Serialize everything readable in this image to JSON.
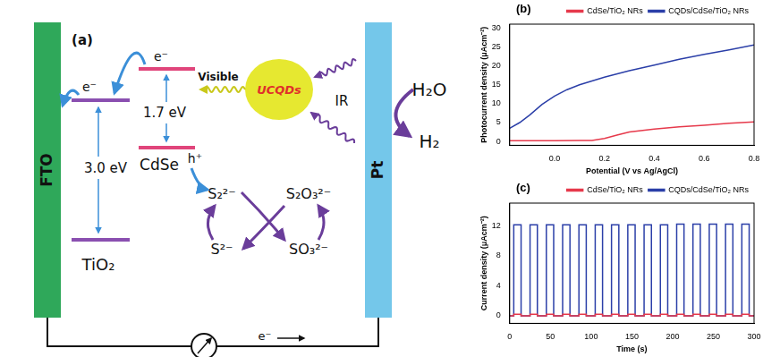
{
  "diagram": {
    "panel_label": "(a)",
    "left_electrode": "FTO",
    "right_electrode": "Pt",
    "tio2": {
      "label": "TiO₂",
      "gap": "3.0 eV",
      "electron": "e⁻"
    },
    "cdse": {
      "label": "CdSe",
      "gap": "1.7 eV",
      "electron": "e⁻",
      "hole": "h⁺"
    },
    "ucqds": "UCQDs",
    "visible": "Visible",
    "ir": "IR",
    "redox": [
      "S₂²⁻",
      "S₂O₃²⁻",
      "S²⁻",
      "SO₃²⁻"
    ],
    "water": "H₂O",
    "hydrogen": "H₂",
    "circuit_electron": "e⁻"
  },
  "chart_data": [
    {
      "panel_label": "(b)",
      "type": "line",
      "x_label": "Potential (V vs Ag/AgCl)",
      "y_label": "Photocurrent density (μAcm⁻²)",
      "xlim": [
        -0.18,
        0.8
      ],
      "xticks": [
        {
          "value": 0,
          "label": "0.0"
        },
        0.2,
        0.4,
        0.6,
        0.8
      ],
      "ylim": [
        -1,
        31
      ],
      "yticks": [
        0,
        5,
        10,
        15,
        20,
        25,
        30
      ],
      "grid": false,
      "legend": "top-right",
      "series": [
        {
          "name": "CdSe/TiO₂ NRs",
          "color": "#e6394b",
          "x": [
            -0.18,
            -0.1,
            0,
            0.1,
            0.15,
            0.2,
            0.25,
            0.3,
            0.4,
            0.5,
            0.6,
            0.7,
            0.8
          ],
          "values": [
            0.2,
            0.2,
            0.2,
            0.25,
            0.3,
            0.8,
            1.7,
            2.5,
            3.3,
            3.9,
            4.3,
            4.8,
            5.2
          ]
        },
        {
          "name": "CQDs/CdSe/TiO₂ NRs",
          "color": "#2b3fa8",
          "x": [
            -0.18,
            -0.14,
            -0.1,
            -0.05,
            0,
            0.05,
            0.1,
            0.2,
            0.3,
            0.4,
            0.5,
            0.6,
            0.7,
            0.8
          ],
          "values": [
            3.5,
            5,
            7,
            9.8,
            12,
            13.7,
            15,
            17,
            18.7,
            20.2,
            21.7,
            23,
            24.2,
            25.5
          ]
        }
      ]
    },
    {
      "panel_label": "(c)",
      "type": "line",
      "x_label": "Time (s)",
      "y_label": "Current density (μAcm⁻²)",
      "xlim": [
        0,
        300
      ],
      "xticks": [
        0,
        50,
        100,
        150,
        200,
        250,
        300
      ],
      "ylim": [
        -1,
        15
      ],
      "yticks": [
        0,
        4,
        8,
        12
      ],
      "grid": false,
      "legend": "top-right",
      "series": [
        {
          "name": "CdSe/TiO₂ NRs",
          "color": "#e6394b",
          "x": [
            0,
            5,
            5,
            14,
            14,
            25,
            25,
            34,
            34,
            45,
            45,
            54,
            54,
            65,
            65,
            74,
            74,
            85,
            85,
            94,
            94,
            105,
            105,
            114,
            114,
            125,
            125,
            134,
            134,
            145,
            145,
            154,
            154,
            165,
            165,
            174,
            174,
            185,
            185,
            194,
            194,
            205,
            205,
            214,
            214,
            225,
            225,
            234,
            234,
            245,
            245,
            254,
            254,
            265,
            265,
            274,
            274,
            285,
            285,
            294,
            294,
            300
          ],
          "values": [
            0,
            0,
            0.2,
            0.2,
            0,
            0,
            0.2,
            0.2,
            0,
            0,
            0.2,
            0.2,
            0,
            0,
            0.2,
            0.2,
            0,
            0,
            0.2,
            0.2,
            0,
            0,
            0.2,
            0.2,
            0,
            0,
            0.2,
            0.2,
            0,
            0,
            0.2,
            0.2,
            0,
            0,
            0.2,
            0.2,
            0,
            0,
            0.2,
            0.2,
            0,
            0,
            0.2,
            0.2,
            0,
            0,
            0.2,
            0.2,
            0,
            0,
            0.2,
            0.2,
            0,
            0,
            0.2,
            0.2,
            0,
            0,
            0.2,
            0.2,
            0,
            0
          ]
        },
        {
          "name": "CQDs/CdSe/TiO₂ NRs",
          "color": "#2b3fa8",
          "x": [
            0,
            5,
            5,
            14,
            14,
            25,
            25,
            34,
            34,
            45,
            45,
            54,
            54,
            65,
            65,
            74,
            74,
            85,
            85,
            94,
            94,
            105,
            105,
            114,
            114,
            125,
            125,
            134,
            134,
            145,
            145,
            154,
            154,
            165,
            165,
            174,
            174,
            185,
            185,
            194,
            194,
            205,
            205,
            214,
            214,
            225,
            225,
            234,
            234,
            245,
            245,
            254,
            254,
            265,
            265,
            274,
            274,
            285,
            285,
            294,
            294,
            300
          ],
          "values": [
            0,
            0,
            12.1,
            12.1,
            0,
            0,
            12.1,
            12.1,
            0,
            0,
            12.1,
            12.1,
            0,
            0,
            12.1,
            12.1,
            0,
            0,
            12.1,
            12.1,
            0,
            0,
            12.1,
            12.1,
            0,
            0,
            12.1,
            12.1,
            0,
            0,
            12.1,
            12.1,
            0,
            0,
            12.1,
            12.1,
            0,
            0,
            12.1,
            12.1,
            0,
            0,
            12.2,
            12.2,
            0,
            0,
            12.2,
            12.2,
            0,
            0,
            12.2,
            12.2,
            0,
            0,
            12.2,
            12.2,
            0,
            0,
            12.2,
            12.2,
            0,
            0
          ]
        }
      ]
    }
  ]
}
